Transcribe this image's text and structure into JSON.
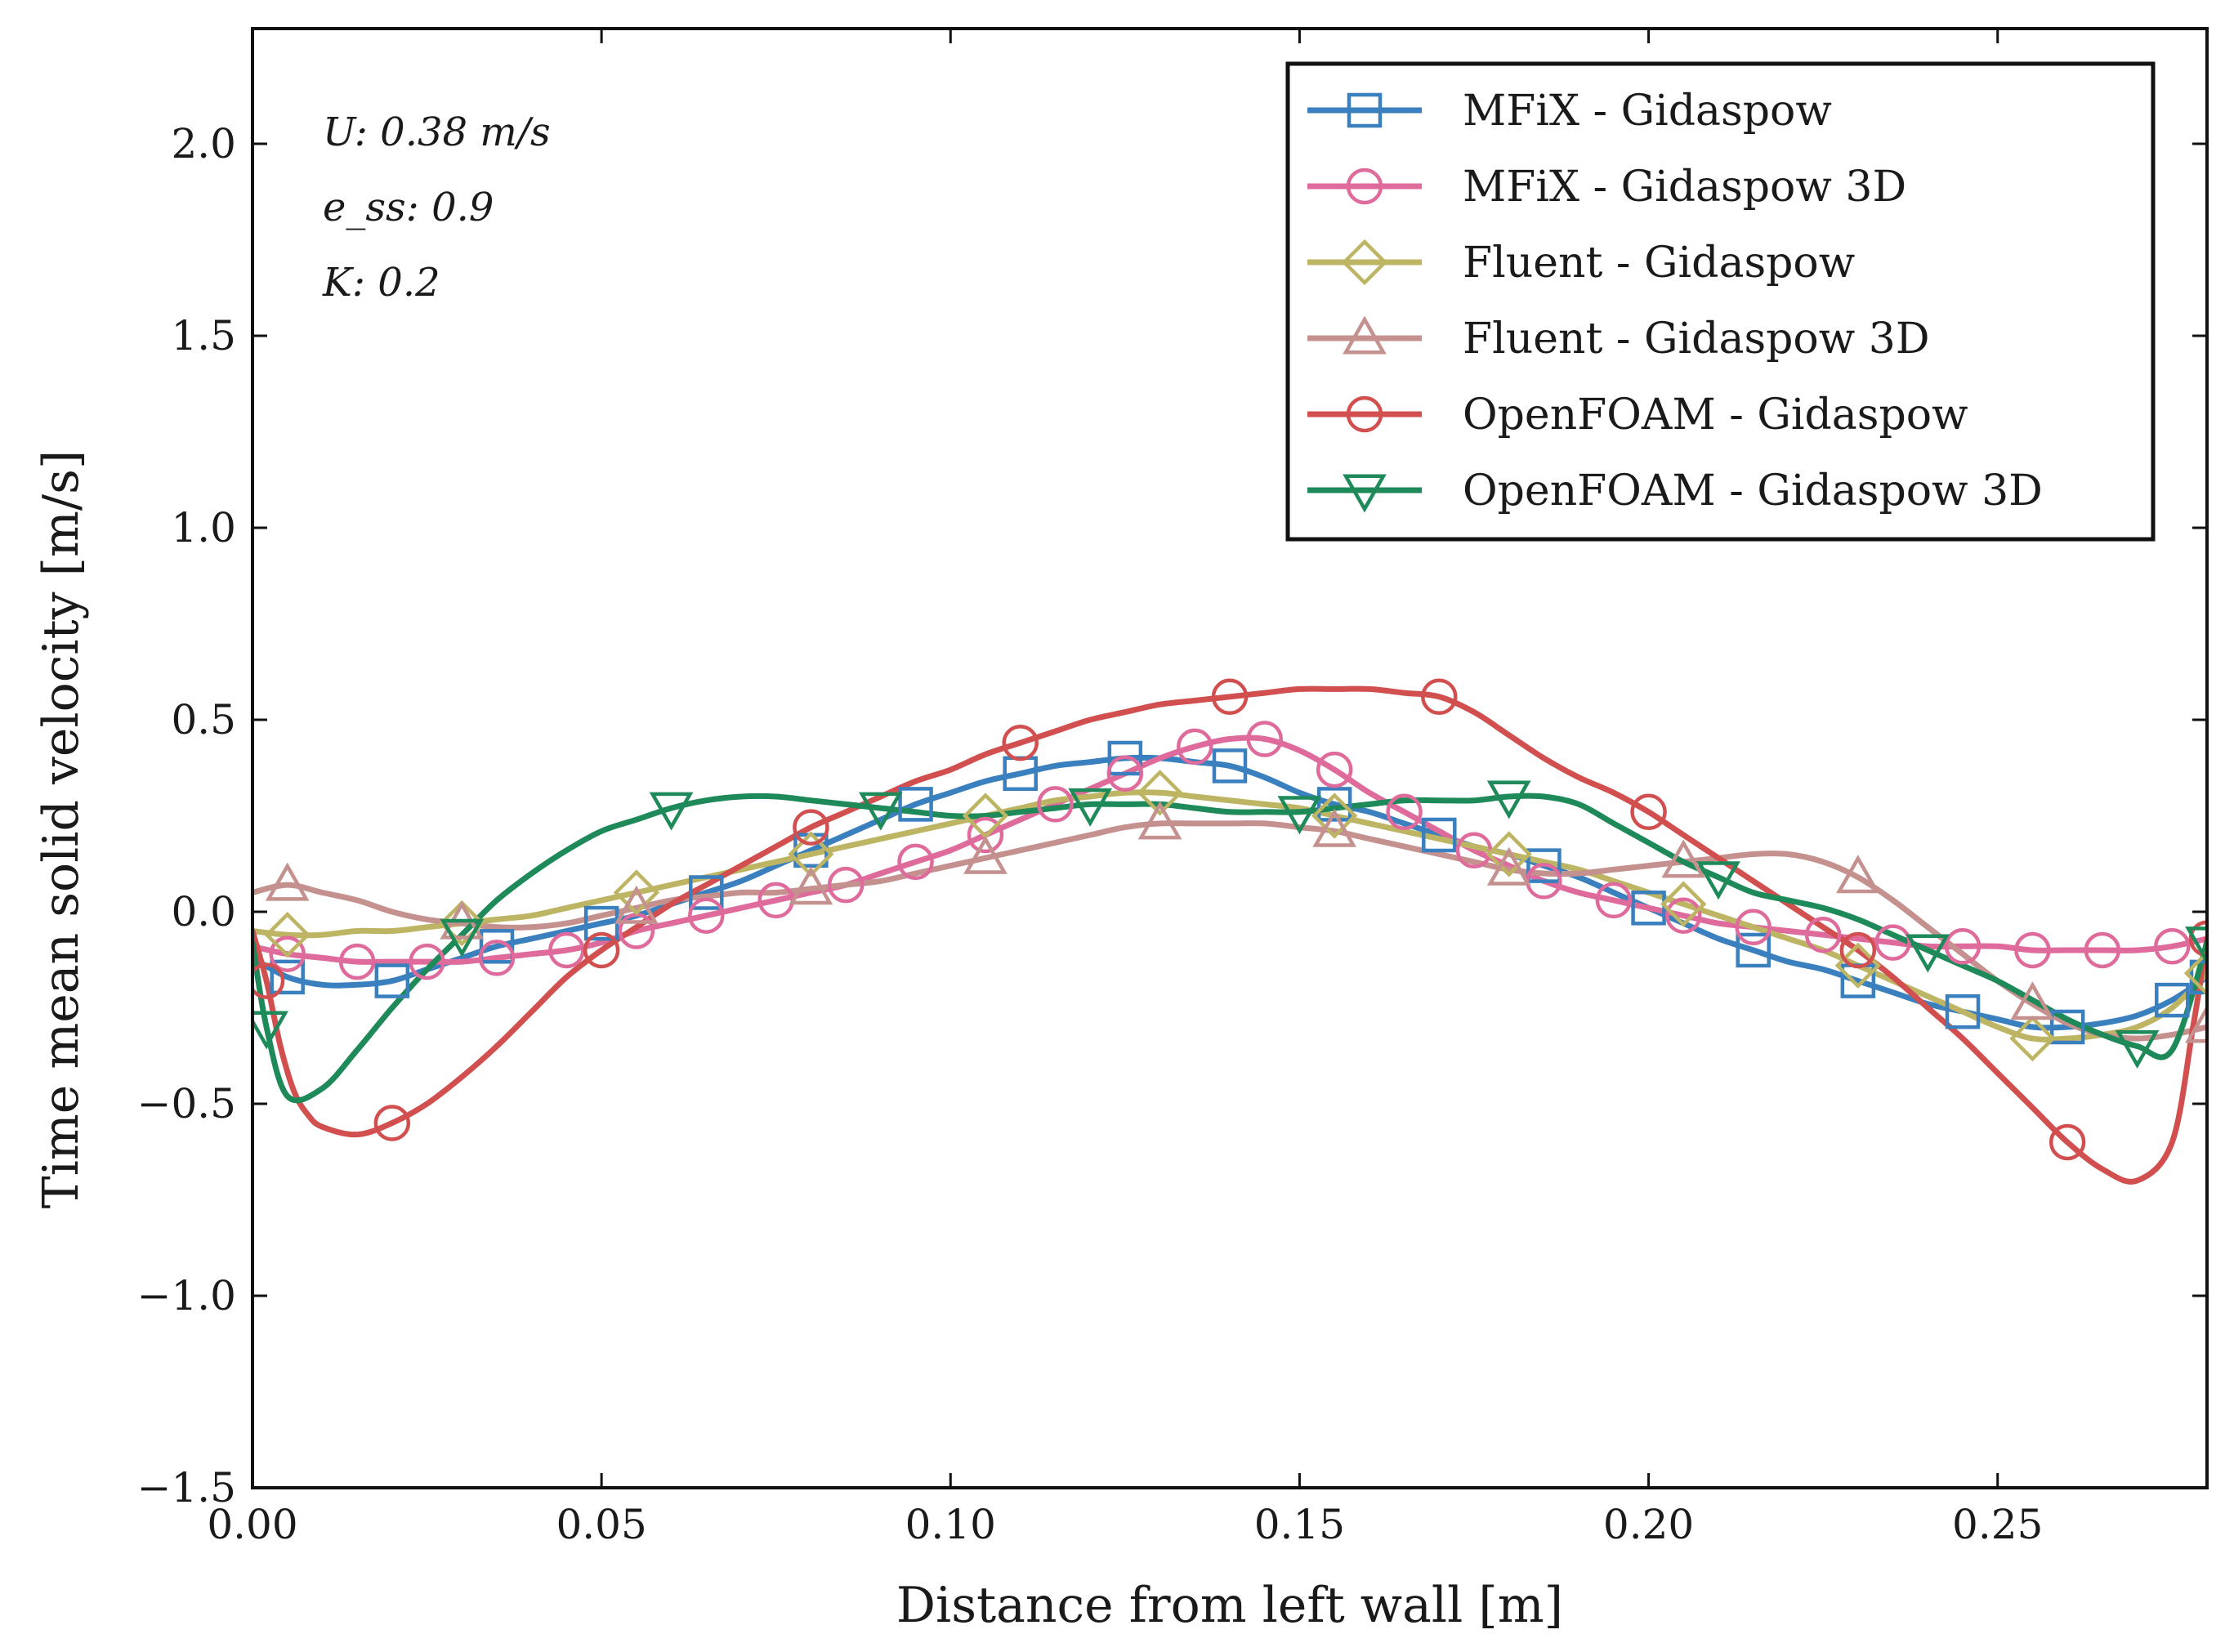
{
  "chart_data": {
    "type": "line",
    "title": "",
    "xlabel": "Distance from left wall [m]",
    "ylabel": "Time mean solid velocity [m/s]",
    "xlim": [
      0.0,
      0.28
    ],
    "ylim": [
      -1.5,
      2.3
    ],
    "xticks": [
      0.0,
      0.05,
      0.1,
      0.15,
      0.2,
      0.25
    ],
    "xtick_labels": [
      "0.00",
      "0.05",
      "0.10",
      "0.15",
      "0.20",
      "0.25"
    ],
    "yticks": [
      -1.5,
      -1.0,
      -0.5,
      0.0,
      0.5,
      1.0,
      1.5,
      2.0
    ],
    "ytick_labels": [
      "−1.5",
      "−1.0",
      "−0.5",
      "0.0",
      "0.5",
      "1.0",
      "1.5",
      "2.0"
    ],
    "grid": false,
    "legend_position": "top-right",
    "annotations": [
      "U: 0.38 m/s",
      "e_ss: 0.9",
      "K: 0.2"
    ],
    "series": [
      {
        "name": "MFiX - Gidaspow",
        "color": "#3a7fbe",
        "marker": "square",
        "x": [
          0.0,
          0.005,
          0.01,
          0.015,
          0.02,
          0.025,
          0.03,
          0.035,
          0.04,
          0.045,
          0.05,
          0.055,
          0.06,
          0.065,
          0.07,
          0.075,
          0.08,
          0.085,
          0.09,
          0.095,
          0.1,
          0.105,
          0.11,
          0.115,
          0.12,
          0.125,
          0.13,
          0.135,
          0.14,
          0.145,
          0.15,
          0.155,
          0.16,
          0.165,
          0.17,
          0.175,
          0.18,
          0.185,
          0.19,
          0.195,
          0.2,
          0.205,
          0.21,
          0.215,
          0.22,
          0.225,
          0.23,
          0.235,
          0.24,
          0.245,
          0.25,
          0.255,
          0.26,
          0.265,
          0.27,
          0.275,
          0.28
        ],
        "y": [
          -0.12,
          -0.17,
          -0.19,
          -0.19,
          -0.18,
          -0.15,
          -0.12,
          -0.09,
          -0.07,
          -0.05,
          -0.03,
          -0.01,
          0.02,
          0.05,
          0.08,
          0.12,
          0.16,
          0.2,
          0.24,
          0.28,
          0.31,
          0.34,
          0.36,
          0.38,
          0.39,
          0.4,
          0.4,
          0.39,
          0.38,
          0.35,
          0.31,
          0.28,
          0.26,
          0.23,
          0.2,
          0.17,
          0.15,
          0.12,
          0.09,
          0.05,
          0.01,
          -0.03,
          -0.07,
          -0.1,
          -0.13,
          -0.15,
          -0.18,
          -0.21,
          -0.24,
          -0.26,
          -0.28,
          -0.3,
          -0.3,
          -0.29,
          -0.27,
          -0.23,
          -0.17
        ],
        "marker_every": 3
      },
      {
        "name": "MFiX - Gidaspow 3D",
        "color": "#de6b9b",
        "marker": "circle",
        "x": [
          0.0,
          0.005,
          0.01,
          0.015,
          0.02,
          0.025,
          0.03,
          0.035,
          0.04,
          0.045,
          0.05,
          0.055,
          0.06,
          0.065,
          0.07,
          0.075,
          0.08,
          0.085,
          0.09,
          0.095,
          0.1,
          0.105,
          0.11,
          0.115,
          0.12,
          0.125,
          0.13,
          0.135,
          0.14,
          0.145,
          0.15,
          0.155,
          0.16,
          0.165,
          0.17,
          0.175,
          0.18,
          0.185,
          0.19,
          0.195,
          0.2,
          0.205,
          0.21,
          0.215,
          0.22,
          0.225,
          0.23,
          0.235,
          0.24,
          0.245,
          0.25,
          0.255,
          0.26,
          0.265,
          0.27,
          0.275,
          0.28
        ],
        "y": [
          -0.09,
          -0.11,
          -0.12,
          -0.13,
          -0.13,
          -0.13,
          -0.13,
          -0.12,
          -0.11,
          -0.1,
          -0.08,
          -0.05,
          -0.03,
          -0.01,
          0.01,
          0.03,
          0.05,
          0.07,
          0.1,
          0.13,
          0.16,
          0.2,
          0.24,
          0.28,
          0.32,
          0.36,
          0.4,
          0.43,
          0.45,
          0.45,
          0.42,
          0.37,
          0.31,
          0.26,
          0.21,
          0.16,
          0.12,
          0.08,
          0.05,
          0.03,
          0.01,
          -0.01,
          -0.03,
          -0.04,
          -0.05,
          -0.06,
          -0.07,
          -0.08,
          -0.09,
          -0.09,
          -0.09,
          -0.1,
          -0.1,
          -0.1,
          -0.1,
          -0.09,
          -0.07
        ],
        "marker_every": 2
      },
      {
        "name": "Fluent - Gidaspow",
        "color": "#bdb563",
        "marker": "diamond",
        "x": [
          0.0,
          0.005,
          0.01,
          0.015,
          0.02,
          0.025,
          0.03,
          0.035,
          0.04,
          0.045,
          0.05,
          0.055,
          0.06,
          0.065,
          0.07,
          0.075,
          0.08,
          0.085,
          0.09,
          0.095,
          0.1,
          0.105,
          0.11,
          0.115,
          0.12,
          0.125,
          0.13,
          0.135,
          0.14,
          0.145,
          0.15,
          0.155,
          0.16,
          0.165,
          0.17,
          0.175,
          0.18,
          0.185,
          0.19,
          0.195,
          0.2,
          0.205,
          0.21,
          0.215,
          0.22,
          0.225,
          0.23,
          0.235,
          0.24,
          0.245,
          0.25,
          0.255,
          0.26,
          0.265,
          0.27,
          0.275,
          0.28
        ],
        "y": [
          -0.05,
          -0.06,
          -0.06,
          -0.05,
          -0.05,
          -0.04,
          -0.03,
          -0.02,
          -0.01,
          0.01,
          0.03,
          0.05,
          0.07,
          0.09,
          0.11,
          0.13,
          0.15,
          0.17,
          0.19,
          0.21,
          0.23,
          0.25,
          0.27,
          0.29,
          0.3,
          0.31,
          0.31,
          0.3,
          0.29,
          0.28,
          0.27,
          0.25,
          0.23,
          0.21,
          0.19,
          0.17,
          0.15,
          0.13,
          0.11,
          0.08,
          0.05,
          0.02,
          -0.01,
          -0.04,
          -0.07,
          -0.1,
          -0.14,
          -0.18,
          -0.22,
          -0.26,
          -0.3,
          -0.33,
          -0.33,
          -0.32,
          -0.3,
          -0.25,
          -0.16
        ],
        "marker_every": 5
      },
      {
        "name": "Fluent - Gidaspow 3D",
        "color": "#c4918f",
        "marker": "triangle-up",
        "x": [
          0.0,
          0.005,
          0.01,
          0.015,
          0.02,
          0.025,
          0.03,
          0.035,
          0.04,
          0.045,
          0.05,
          0.055,
          0.06,
          0.065,
          0.07,
          0.075,
          0.08,
          0.085,
          0.09,
          0.095,
          0.1,
          0.105,
          0.11,
          0.115,
          0.12,
          0.125,
          0.13,
          0.135,
          0.14,
          0.145,
          0.15,
          0.155,
          0.16,
          0.165,
          0.17,
          0.175,
          0.18,
          0.185,
          0.19,
          0.195,
          0.2,
          0.205,
          0.21,
          0.215,
          0.22,
          0.225,
          0.23,
          0.235,
          0.24,
          0.245,
          0.25,
          0.255,
          0.26,
          0.265,
          0.27,
          0.275,
          0.28
        ],
        "y": [
          0.05,
          0.07,
          0.05,
          0.03,
          0.0,
          -0.02,
          -0.03,
          -0.04,
          -0.04,
          -0.03,
          -0.01,
          0.01,
          0.03,
          0.04,
          0.05,
          0.05,
          0.06,
          0.07,
          0.08,
          0.1,
          0.12,
          0.14,
          0.16,
          0.18,
          0.2,
          0.22,
          0.23,
          0.23,
          0.23,
          0.23,
          0.22,
          0.21,
          0.19,
          0.17,
          0.15,
          0.13,
          0.11,
          0.1,
          0.1,
          0.11,
          0.12,
          0.13,
          0.14,
          0.15,
          0.15,
          0.13,
          0.09,
          0.03,
          -0.04,
          -0.11,
          -0.18,
          -0.24,
          -0.29,
          -0.32,
          -0.33,
          -0.32,
          -0.3
        ],
        "marker_every": 5
      },
      {
        "name": "OpenFOAM - Gidaspow",
        "color": "#d1504f",
        "marker": "circle",
        "x": [
          0.0,
          0.002,
          0.004,
          0.006,
          0.008,
          0.01,
          0.015,
          0.02,
          0.025,
          0.03,
          0.035,
          0.04,
          0.045,
          0.05,
          0.055,
          0.06,
          0.065,
          0.07,
          0.075,
          0.08,
          0.085,
          0.09,
          0.095,
          0.1,
          0.105,
          0.11,
          0.115,
          0.12,
          0.125,
          0.13,
          0.135,
          0.14,
          0.145,
          0.15,
          0.155,
          0.16,
          0.165,
          0.17,
          0.175,
          0.18,
          0.185,
          0.19,
          0.195,
          0.2,
          0.205,
          0.21,
          0.215,
          0.22,
          0.225,
          0.23,
          0.235,
          0.24,
          0.245,
          0.25,
          0.255,
          0.26,
          0.265,
          0.27,
          0.275,
          0.278,
          0.28
        ],
        "y": [
          -0.05,
          -0.18,
          -0.35,
          -0.47,
          -0.53,
          -0.56,
          -0.58,
          -0.55,
          -0.5,
          -0.43,
          -0.35,
          -0.26,
          -0.17,
          -0.1,
          -0.04,
          0.02,
          0.07,
          0.12,
          0.17,
          0.22,
          0.26,
          0.3,
          0.34,
          0.37,
          0.41,
          0.44,
          0.47,
          0.5,
          0.52,
          0.54,
          0.55,
          0.56,
          0.57,
          0.58,
          0.58,
          0.58,
          0.57,
          0.56,
          0.52,
          0.46,
          0.4,
          0.35,
          0.31,
          0.26,
          0.2,
          0.14,
          0.08,
          0.02,
          -0.04,
          -0.1,
          -0.17,
          -0.25,
          -0.33,
          -0.42,
          -0.51,
          -0.6,
          -0.67,
          -0.7,
          -0.6,
          -0.3,
          -0.07
        ],
        "marker_every": 6
      },
      {
        "name": "OpenFOAM - Gidaspow 3D",
        "color": "#1e8a5a",
        "marker": "triangle-down",
        "x": [
          0.0,
          0.002,
          0.005,
          0.01,
          0.015,
          0.02,
          0.025,
          0.03,
          0.035,
          0.04,
          0.045,
          0.05,
          0.055,
          0.06,
          0.065,
          0.07,
          0.075,
          0.08,
          0.085,
          0.09,
          0.095,
          0.1,
          0.105,
          0.11,
          0.115,
          0.12,
          0.125,
          0.13,
          0.135,
          0.14,
          0.145,
          0.15,
          0.155,
          0.16,
          0.165,
          0.17,
          0.175,
          0.18,
          0.185,
          0.19,
          0.195,
          0.2,
          0.205,
          0.21,
          0.215,
          0.22,
          0.225,
          0.23,
          0.235,
          0.24,
          0.245,
          0.25,
          0.255,
          0.26,
          0.265,
          0.27,
          0.275,
          0.28
        ],
        "y": [
          -0.08,
          -0.3,
          -0.48,
          -0.46,
          -0.36,
          -0.25,
          -0.15,
          -0.06,
          0.03,
          0.1,
          0.16,
          0.21,
          0.24,
          0.27,
          0.29,
          0.3,
          0.3,
          0.29,
          0.28,
          0.27,
          0.26,
          0.25,
          0.25,
          0.26,
          0.27,
          0.28,
          0.28,
          0.28,
          0.27,
          0.26,
          0.26,
          0.26,
          0.27,
          0.28,
          0.29,
          0.29,
          0.29,
          0.3,
          0.3,
          0.28,
          0.23,
          0.18,
          0.13,
          0.09,
          0.05,
          0.03,
          0.01,
          -0.02,
          -0.06,
          -0.1,
          -0.14,
          -0.18,
          -0.23,
          -0.28,
          -0.32,
          -0.35,
          -0.36,
          -0.08
        ],
        "marker_every": 6
      }
    ]
  }
}
